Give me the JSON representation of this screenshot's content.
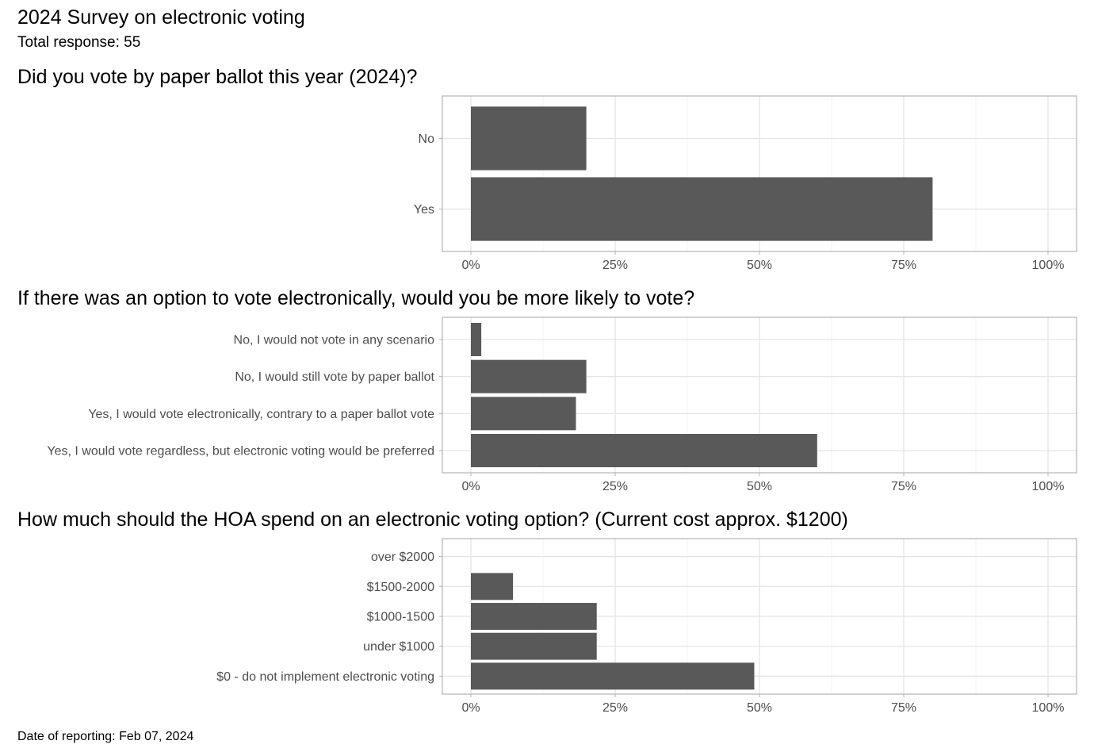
{
  "header": {
    "title": "2024 Survey on electronic voting",
    "subtitle": "Total response: 55"
  },
  "footer": {
    "caption": "Date of reporting: Feb 07, 2024"
  },
  "style": {
    "bar_color": "#595959",
    "grid_color": "#e3e3e3",
    "panel_border_color": "#b3b3b3",
    "tick_label_color": "#4d4d4d"
  },
  "chart_data": [
    {
      "type": "bar",
      "orientation": "horizontal",
      "title": "Did you vote by paper ballot this year (2024)?",
      "categories": [
        "No",
        "Yes"
      ],
      "values": [
        20,
        80
      ],
      "unit": "%",
      "xlim": [
        0,
        100
      ],
      "x_ticks": [
        "0%",
        "25%",
        "50%",
        "75%",
        "100%"
      ],
      "grid": true,
      "legend": "none"
    },
    {
      "type": "bar",
      "orientation": "horizontal",
      "title": "If there was an option to vote electronically, would you be more likely to vote?",
      "categories": [
        "No, I would not vote in any scenario",
        "No, I would still vote by paper ballot",
        "Yes, I would vote electronically, contrary to a paper ballot vote",
        "Yes, I would vote regardless, but electronic voting would be preferred"
      ],
      "values": [
        1.8,
        20,
        18.2,
        60
      ],
      "unit": "%",
      "xlim": [
        0,
        100
      ],
      "x_ticks": [
        "0%",
        "25%",
        "50%",
        "75%",
        "100%"
      ],
      "grid": true,
      "legend": "none"
    },
    {
      "type": "bar",
      "orientation": "horizontal",
      "title": "How much should the HOA spend on an electronic voting option? (Current cost approx. $1200)",
      "categories": [
        "over $2000",
        "$1500-2000",
        "$1000-1500",
        "under $1000",
        "$0 - do not implement electronic voting"
      ],
      "values": [
        0,
        7.3,
        21.8,
        21.8,
        49.1
      ],
      "unit": "%",
      "xlim": [
        0,
        100
      ],
      "x_ticks": [
        "0%",
        "25%",
        "50%",
        "75%",
        "100%"
      ],
      "grid": true,
      "legend": "none"
    }
  ]
}
